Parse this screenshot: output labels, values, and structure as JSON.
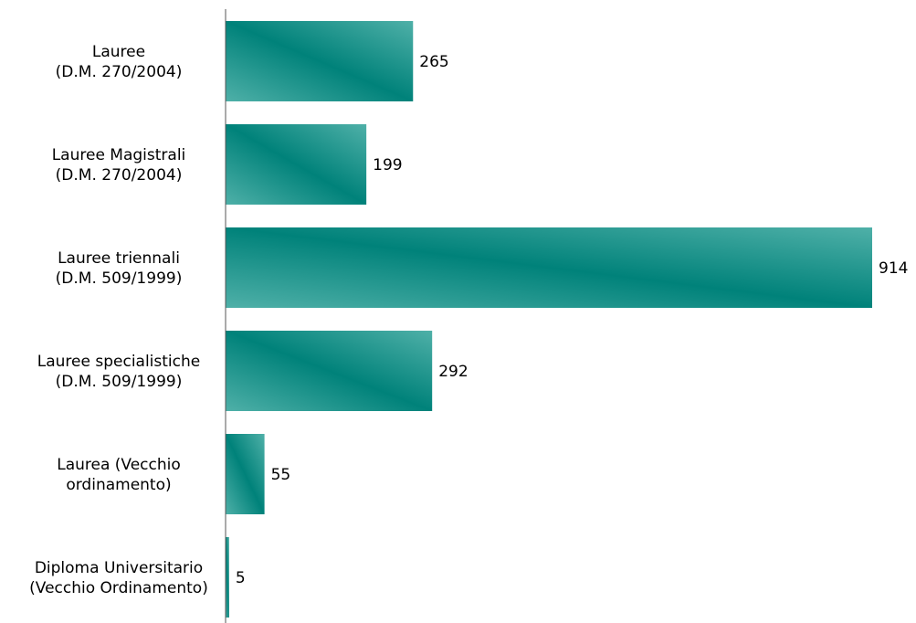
{
  "chart_data": {
    "type": "bar",
    "orientation": "horizontal",
    "categories": [
      [
        "Lauree",
        "(D.M. 270/2004)"
      ],
      [
        "Lauree Magistrali",
        "(D.M. 270/2004)"
      ],
      [
        "Lauree triennali",
        "(D.M. 509/1999)"
      ],
      [
        "Lauree specialistiche",
        "(D.M. 509/1999)"
      ],
      [
        "Laurea (Vecchio",
        "ordinamento)"
      ],
      [
        "Diploma Universitario",
        "(Vecchio Ordinamento)"
      ]
    ],
    "values": [
      265,
      199,
      914,
      292,
      55,
      5
    ],
    "data_labels": [
      "265",
      "199",
      "914",
      "292",
      "55",
      "5"
    ],
    "title": "",
    "xlabel": "",
    "ylabel": "",
    "xlim": [
      0,
      914
    ],
    "grid": false,
    "legend": "none",
    "colors": {
      "bar_dark": "#00827a",
      "bar_light": "#4fb0a8",
      "axis": "#555555"
    }
  }
}
